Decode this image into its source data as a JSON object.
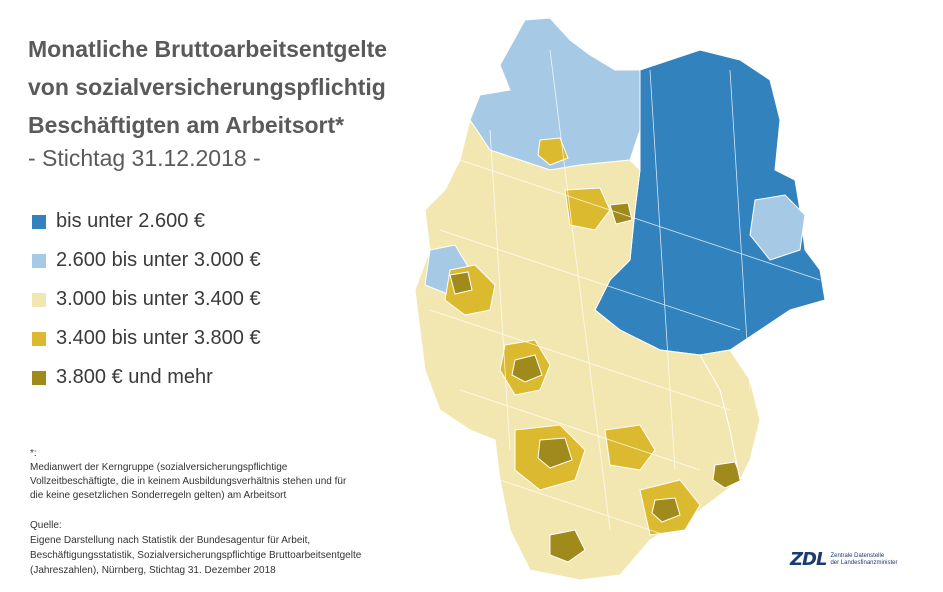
{
  "title": {
    "line1": "Monatliche Bruttoarbeitsentgelte",
    "line2": "von sozialversicherungspflichtig",
    "line3": "Beschäftigten am Arbeitsort*",
    "subtitle": "- Stichtag 31.12.2018 -"
  },
  "colors": {
    "class1": "#3182bd",
    "class2": "#a6cae5",
    "class3": "#f3e7b1",
    "class4": "#dcba2f",
    "class5": "#a18a1c"
  },
  "legend": [
    {
      "label": "bis unter 2.600 €",
      "color": "#3182bd"
    },
    {
      "label": "2.600 bis unter 3.000 €",
      "color": "#a6cae5"
    },
    {
      "label": "3.000 bis unter 3.400 €",
      "color": "#f3e7b1"
    },
    {
      "label": "3.400 bis unter 3.800 €",
      "color": "#dcba2f"
    },
    {
      "label": "3.800 € und mehr",
      "color": "#a18a1c"
    }
  ],
  "footnote": {
    "marker": "*:",
    "text1": "Medianwert der Kerngruppe (sozialversicherungspflichtige",
    "text2": "Vollzeitbeschäftigte, die in keinem Ausbildungsverhältnis stehen und für",
    "text3": "die keine gesetzlichen Sonderregeln gelten) am Arbeitsort"
  },
  "source": {
    "heading": "Quelle:",
    "line1": "Eigene Darstellung nach Statistik der Bundesagentur für Arbeit,",
    "line2": "Beschäftigungsstatistik, Sozialversicherungspflichtige Bruttoarbeitsentgelte",
    "line3": "(Jahreszahlen), Nürnberg, Stichtag 31. Dezember 2018"
  },
  "logo": {
    "mark": "ZDL",
    "line1": "Zentrale Datenstelle",
    "line2": "der Landesfinanzminister"
  }
}
